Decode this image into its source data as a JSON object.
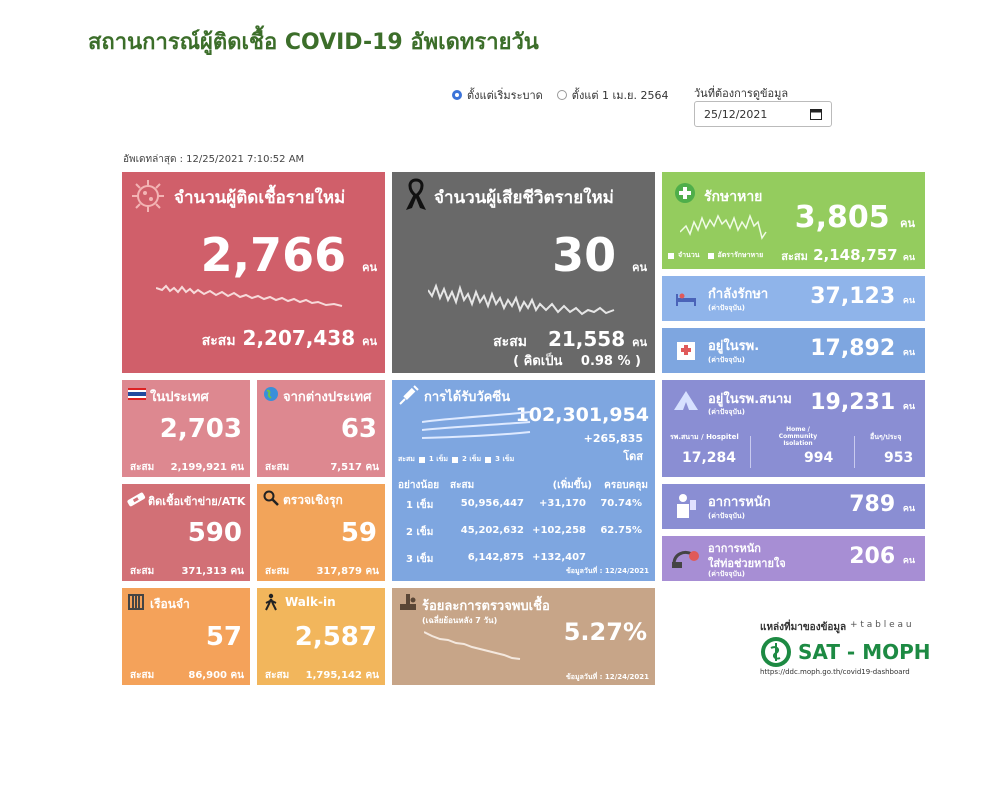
{
  "header": {
    "title": "สถานการณ์ผู้ติดเชื้อ COVID-19 อัพเดทรายวัน"
  },
  "filters": {
    "radio_since_start": "ตั้งแต่เริ่มระบาด",
    "radio_since_apr": "ตั้งแต่ 1 เม.ย. 2564",
    "date_label": "วันที่ต้องการดูข้อมูล",
    "date_value": "25/12/2021"
  },
  "updated": "อัพเดทล่าสุด : 12/25/2021 7:10:52 AM",
  "unit": "คน",
  "new_cases": {
    "label": "จำนวนผู้ติดเชื้อรายใหม่",
    "value": "2,766",
    "cum_label": "สะสม",
    "cum_value": "2,207,438"
  },
  "new_deaths": {
    "label": "จำนวนผู้เสียชีวิตรายใหม่",
    "value": "30",
    "cum_label": "สะสม",
    "cum_value": "21,558",
    "pct_label": "( คิดเป็น",
    "pct_value": "0.98 % )"
  },
  "recovered": {
    "label": "รักษาหาย",
    "value": "3,805",
    "legend1": "จำนวน",
    "legend2": "อัตรารักษาหาย",
    "cum_label": "สะสม",
    "cum_value": "2,148,757"
  },
  "treating": {
    "label": "กำลังรักษา",
    "sub": "(ค่าปัจจุบัน)",
    "value": "37,123"
  },
  "hospital": {
    "label": "อยู่ในรพ.",
    "sub": "(ค่าปัจจุบัน)",
    "value": "17,892"
  },
  "field_hospital": {
    "label": "อยู่ในรพ.สนาม",
    "sub": "(ค่าปัจจุบัน)",
    "value": "19,231",
    "c1_label": "รพ.สนาม / Hospitel",
    "c1_value": "17,284",
    "c2_label": "Home / Community Isolation",
    "c2_value": "994",
    "c3_label": "อื่นๆ/ประจุ",
    "c3_value": "953"
  },
  "severe": {
    "label": "อาการหนัก",
    "sub": "(ค่าปัจจุบัน)",
    "value": "789"
  },
  "ventilator": {
    "label1": "อาการหนัก",
    "label2": "ใส่ท่อช่วยหายใจ",
    "sub": "(ค่าปัจจุบัน)",
    "value": "206"
  },
  "domestic": {
    "label": "ในประเทศ",
    "value": "2,703",
    "cum_label": "สะสม",
    "cum_value": "2,199,921"
  },
  "abroad": {
    "label": "จากต่างประเทศ",
    "value": "63",
    "cum_label": "สะสม",
    "cum_value": "7,517"
  },
  "atk": {
    "label": "ติดเชื้อเข้าข่าย/ATK",
    "value": "590",
    "cum_label": "สะสม",
    "cum_value": "371,313"
  },
  "proactive": {
    "label": "ตรวจเชิงรุก",
    "value": "59",
    "cum_label": "สะสม",
    "cum_value": "317,879"
  },
  "prison": {
    "label": "เรือนจำ",
    "value": "57",
    "cum_label": "สะสม",
    "cum_value": "86,900"
  },
  "walkin": {
    "label": "Walk-in",
    "value": "2,587",
    "cum_label": "สะสม",
    "cum_value": "1,795,142"
  },
  "vaccine": {
    "label": "การได้รับวัคซีน",
    "total": "102,301,954",
    "increase": "+265,835",
    "dose_unit": "โดส",
    "legend": [
      "สะสม",
      "1 เข็ม",
      "2 เข็ม",
      "3 เข็ม"
    ],
    "headers": [
      "อย่างน้อย",
      "สะสม",
      "(เพิ่มขึ้น)",
      "ครอบคลุม"
    ],
    "rows": [
      [
        "1 เข็ม",
        "50,956,447",
        "+31,170",
        "70.74%"
      ],
      [
        "2 เข็ม",
        "45,202,632",
        "+102,258",
        "62.75%"
      ],
      [
        "3 เข็ม",
        "6,142,875",
        "+132,407",
        ""
      ]
    ],
    "data_date": "ข้อมูลวันที่ : 12/24/2021"
  },
  "positivity": {
    "label": "ร้อยละการตรวจพบเชื้อ",
    "sub": "(เฉลี่ยย้อนหลัง 7 วัน)",
    "value": "5.27%",
    "data_date": "ข้อมูลวันที่ : 12/24/2021"
  },
  "source": {
    "label": "แหล่งที่มาของข้อมูล",
    "tableau": "+ t a b l e a u",
    "org": "SAT - MOPH",
    "url": "https://ddc.moph.go.th/covid19-dashboard"
  }
}
